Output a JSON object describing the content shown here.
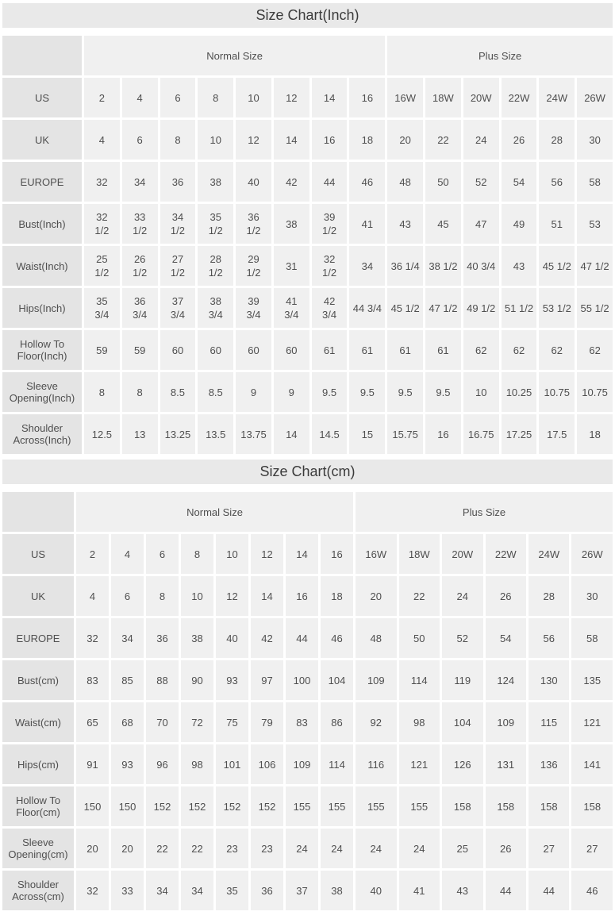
{
  "colors": {
    "title_band": "#e9e9e9",
    "label_cell": "#e4e4e4",
    "value_cell": "#f0f0f0",
    "gap": "#ffffff",
    "text": "#4f4f4f"
  },
  "chart_data": [
    {
      "type": "table",
      "title": "Size Chart(Inch)",
      "group_headers": [
        {
          "label": "Normal Size",
          "span": 8
        },
        {
          "label": "Plus Size",
          "span": 6
        }
      ],
      "rows": [
        {
          "label": "US",
          "values": [
            "2",
            "4",
            "6",
            "8",
            "10",
            "12",
            "14",
            "16",
            "16W",
            "18W",
            "20W",
            "22W",
            "24W",
            "26W"
          ]
        },
        {
          "label": "UK",
          "values": [
            "4",
            "6",
            "8",
            "10",
            "12",
            "14",
            "16",
            "18",
            "20",
            "22",
            "24",
            "26",
            "28",
            "30"
          ]
        },
        {
          "label": "EUROPE",
          "values": [
            "32",
            "34",
            "36",
            "38",
            "40",
            "42",
            "44",
            "46",
            "48",
            "50",
            "52",
            "54",
            "56",
            "58"
          ]
        },
        {
          "label": "Bust(Inch)",
          "values": [
            "32\n1/2",
            "33\n1/2",
            "34\n1/2",
            "35\n1/2",
            "36\n1/2",
            "38",
            "39\n1/2",
            "41",
            "43",
            "45",
            "47",
            "49",
            "51",
            "53"
          ]
        },
        {
          "label": "Waist(Inch)",
          "values": [
            "25\n1/2",
            "26\n1/2",
            "27\n1/2",
            "28\n1/2",
            "29\n1/2",
            "31",
            "32\n1/2",
            "34",
            "36 1/4",
            "38 1/2",
            "40 3/4",
            "43",
            "45 1/2",
            "47 1/2"
          ]
        },
        {
          "label": "Hips(Inch)",
          "values": [
            "35\n3/4",
            "36\n3/4",
            "37\n3/4",
            "38\n3/4",
            "39\n3/4",
            "41\n3/4",
            "42\n3/4",
            "44 3/4",
            "45 1/2",
            "47 1/2",
            "49 1/2",
            "51 1/2",
            "53 1/2",
            "55 1/2"
          ]
        },
        {
          "label": "Hollow To Floor(Inch)",
          "values": [
            "59",
            "59",
            "60",
            "60",
            "60",
            "60",
            "61",
            "61",
            "61",
            "61",
            "62",
            "62",
            "62",
            "62"
          ]
        },
        {
          "label": "Sleeve Opening(Inch)",
          "values": [
            "8",
            "8",
            "8.5",
            "8.5",
            "9",
            "9",
            "9.5",
            "9.5",
            "9.5",
            "9.5",
            "10",
            "10.25",
            "10.75",
            "10.75"
          ]
        },
        {
          "label": "Shoulder Across(Inch)",
          "values": [
            "12.5",
            "13",
            "13.25",
            "13.5",
            "13.75",
            "14",
            "14.5",
            "15",
            "15.75",
            "16",
            "16.75",
            "17.25",
            "17.5",
            "18"
          ]
        }
      ]
    },
    {
      "type": "table",
      "title": "Size Chart(cm)",
      "group_headers": [
        {
          "label": "Normal Size",
          "span": 8
        },
        {
          "label": "Plus Size",
          "span": 6
        }
      ],
      "rows": [
        {
          "label": "US",
          "values": [
            "2",
            "4",
            "6",
            "8",
            "10",
            "12",
            "14",
            "16",
            "16W",
            "18W",
            "20W",
            "22W",
            "24W",
            "26W"
          ]
        },
        {
          "label": "UK",
          "values": [
            "4",
            "6",
            "8",
            "10",
            "12",
            "14",
            "16",
            "18",
            "20",
            "22",
            "24",
            "26",
            "28",
            "30"
          ]
        },
        {
          "label": "EUROPE",
          "values": [
            "32",
            "34",
            "36",
            "38",
            "40",
            "42",
            "44",
            "46",
            "48",
            "50",
            "52",
            "54",
            "56",
            "58"
          ]
        },
        {
          "label": "Bust(cm)",
          "values": [
            "83",
            "85",
            "88",
            "90",
            "93",
            "97",
            "100",
            "104",
            "109",
            "114",
            "119",
            "124",
            "130",
            "135"
          ]
        },
        {
          "label": "Waist(cm)",
          "values": [
            "65",
            "68",
            "70",
            "72",
            "75",
            "79",
            "83",
            "86",
            "92",
            "98",
            "104",
            "109",
            "115",
            "121"
          ]
        },
        {
          "label": "Hips(cm)",
          "values": [
            "91",
            "93",
            "96",
            "98",
            "101",
            "106",
            "109",
            "114",
            "116",
            "121",
            "126",
            "131",
            "136",
            "141"
          ]
        },
        {
          "label": "Hollow To Floor(cm)",
          "values": [
            "150",
            "150",
            "152",
            "152",
            "152",
            "152",
            "155",
            "155",
            "155",
            "155",
            "158",
            "158",
            "158",
            "158"
          ]
        },
        {
          "label": "Sleeve Opening(cm)",
          "values": [
            "20",
            "20",
            "22",
            "22",
            "23",
            "23",
            "24",
            "24",
            "24",
            "24",
            "25",
            "26",
            "27",
            "27"
          ]
        },
        {
          "label": "Shoulder Across(cm)",
          "values": [
            "32",
            "33",
            "34",
            "34",
            "35",
            "36",
            "37",
            "38",
            "40",
            "41",
            "43",
            "44",
            "44",
            "46"
          ]
        }
      ]
    }
  ]
}
